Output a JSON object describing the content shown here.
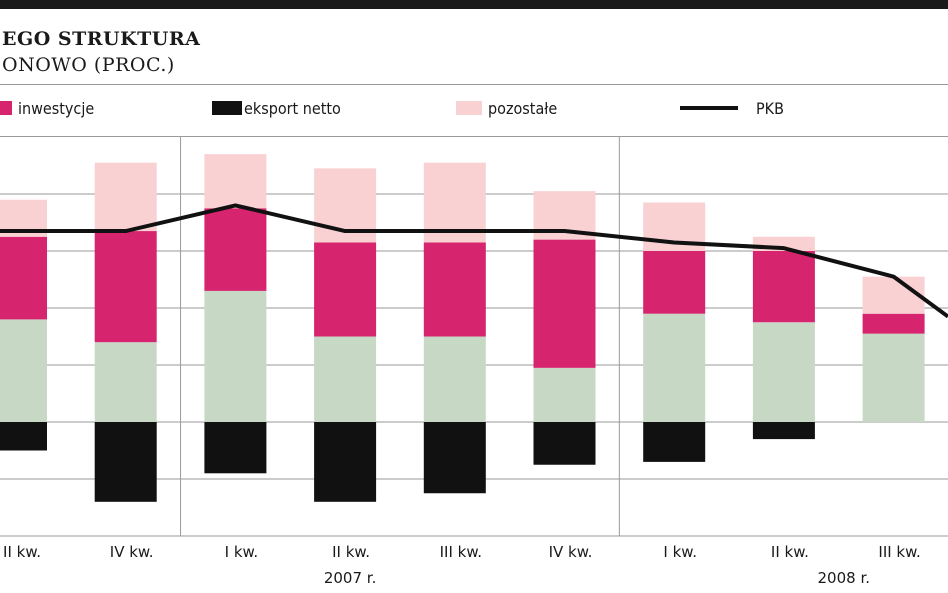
{
  "header": {
    "title_line1": "EGO STRUKTURA",
    "title_line2": "ONOWO (PROC.)"
  },
  "legend": {
    "investment": "inwestycje",
    "net_export": "eksport netto",
    "other": "pozostałe",
    "gdp": "PKB"
  },
  "colors": {
    "investment": "#d6246e",
    "net_export": "#111111",
    "other": "#f9d1d3",
    "consumption": "#c7d9c5",
    "gdp": "#111111",
    "grid": "#9a9a9a"
  },
  "chart_data": {
    "type": "bar",
    "stacked": true,
    "grid": true,
    "legend_position": "top",
    "categories": [
      "II kw.",
      "IV kw.",
      "I kw.",
      "II kw.",
      "III kw.",
      "IV kw.",
      "I kw.",
      "II kw.",
      "III kw.",
      ""
    ],
    "year_labels": [
      {
        "label": "",
        "categories": [
          0
        ]
      },
      {
        "label": "2007 r.",
        "categories": [
          1,
          2,
          3,
          4,
          5
        ]
      },
      {
        "label": "2008 r.",
        "categories": [
          6,
          7,
          8,
          9
        ]
      }
    ],
    "ylim": [
      -2,
      5
    ],
    "series": [
      {
        "key": "consumption",
        "values": [
          1.8,
          1.4,
          2.3,
          1.5,
          1.5,
          0.95,
          1.9,
          1.75,
          1.55,
          null
        ]
      },
      {
        "key": "investment",
        "values": [
          1.45,
          1.95,
          1.45,
          1.65,
          1.65,
          2.25,
          1.1,
          1.25,
          0.35,
          null
        ]
      },
      {
        "key": "other",
        "values": [
          0.65,
          1.2,
          0.95,
          1.3,
          1.4,
          0.85,
          0.85,
          0.25,
          0.65,
          null
        ]
      },
      {
        "key": "net_export",
        "values": [
          -0.5,
          -1.4,
          -0.9,
          -1.4,
          -1.25,
          -0.75,
          -0.7,
          -0.3,
          0,
          null
        ]
      }
    ],
    "line": {
      "key": "gdp",
      "values": [
        3.35,
        3.35,
        3.8,
        3.35,
        3.35,
        3.35,
        3.15,
        3.05,
        2.55,
        1.85
      ]
    }
  }
}
